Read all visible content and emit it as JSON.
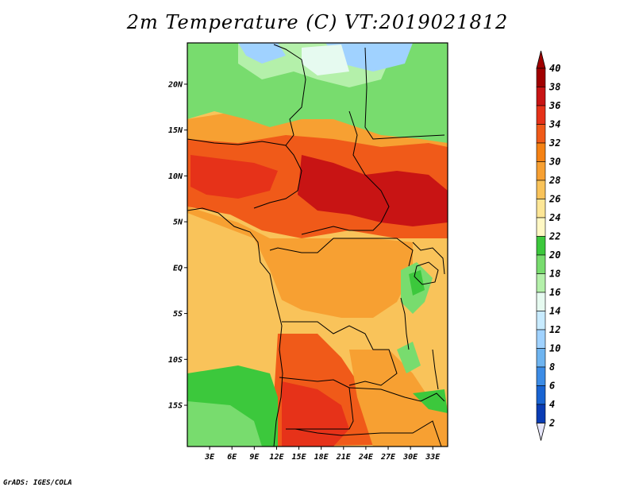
{
  "title": "2m Temperature (C) VT:2019021812",
  "credit": "GrADS: IGES/COLA",
  "map": {
    "lon_range": [
      0,
      35
    ],
    "lat_range": [
      -19.5,
      24.5
    ],
    "lon_ticks": [
      "3E",
      "6E",
      "9E",
      "12E",
      "15E",
      "18E",
      "21E",
      "24E",
      "27E",
      "30E",
      "33E"
    ],
    "lat_ticks": [
      "20N",
      "15N",
      "10N",
      "5N",
      "EQ",
      "5S",
      "10S",
      "15S"
    ]
  },
  "colorbar": {
    "labels": [
      "40",
      "38",
      "36",
      "34",
      "32",
      "30",
      "28",
      "26",
      "24",
      "22",
      "20",
      "18",
      "16",
      "14",
      "12",
      "10",
      "8",
      "6",
      "4",
      "2"
    ],
    "colors": [
      "#a00000",
      "#c81414",
      "#e63219",
      "#f05a19",
      "#f58214",
      "#f7a032",
      "#f9c35a",
      "#fde696",
      "#fff8c4",
      "#3cc83c",
      "#78dc6e",
      "#b4f0aa",
      "#e6faf0",
      "#c8ebff",
      "#a0d2ff",
      "#6eb4f0",
      "#3c8ce6",
      "#1964d2",
      "#0a3cb4",
      "#0a1478"
    ],
    "top_arrow": "#a00000",
    "bottom_arrow": "#e6e6fa"
  },
  "field_colors": {
    "red": "#c81414",
    "darkorange": "#e63219",
    "orange": "#f05a19",
    "lightorange": "#f58214",
    "tan": "#f7a032",
    "paletan": "#f9c35a",
    "green": "#3cc83c",
    "lightgreen": "#78dc6e",
    "palegreen": "#b4f0aa",
    "mint": "#e6faf0",
    "skyblue": "#a0d2ff"
  }
}
